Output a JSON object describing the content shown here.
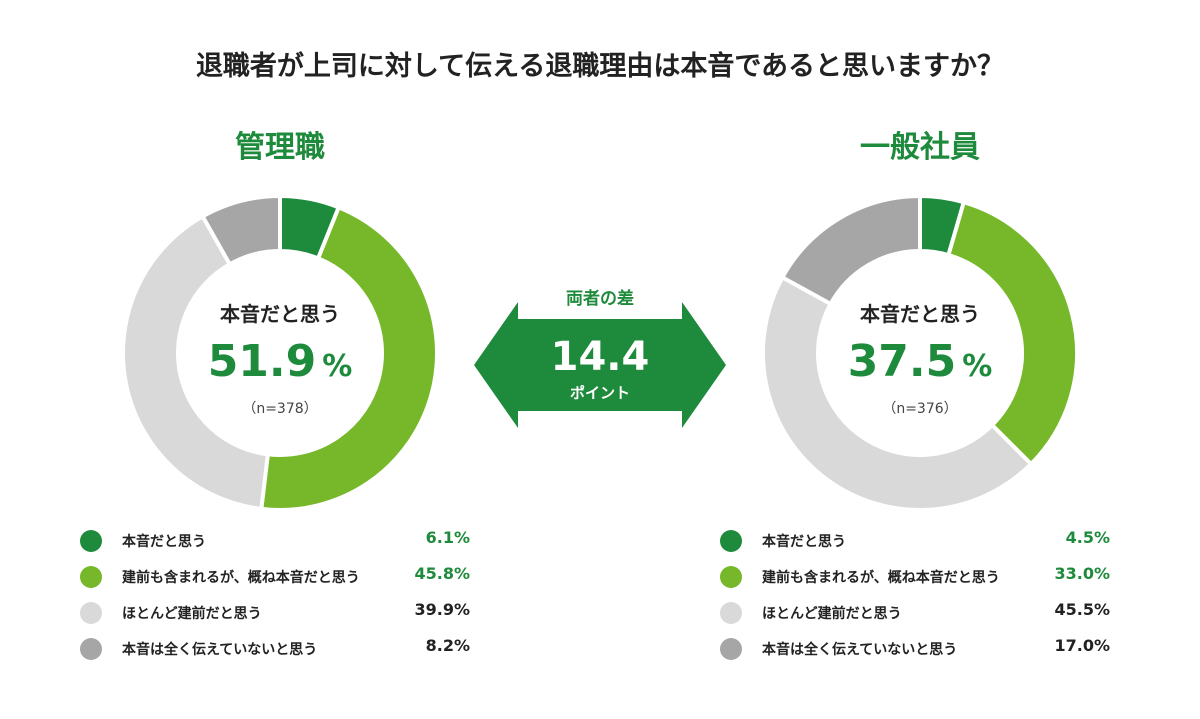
{
  "title": "退職者が上司に対して伝える退職理由は本音であると思いますか？",
  "center_label": "本音だと思う",
  "difference": {
    "label": "両者の差",
    "value": "14.4",
    "unit": "ポイント"
  },
  "colors": {
    "dark_green": "#1e8a3c",
    "light_green": "#76b82a",
    "light_gray": "#d9d9d9",
    "mid_gray": "#a6a6a6",
    "accent_text": "#1e8a3c"
  },
  "chart_data": [
    {
      "type": "pie",
      "title": "管理職",
      "center_value": "51.9",
      "center_unit": "%",
      "sample_size": "（n=378）",
      "categories": [
        "本音だと思う",
        "建前も含まれるが、概ね本音だと思う",
        "ほとんど建前だと思う",
        "本音は全く伝えていないと思う"
      ],
      "values": [
        6.1,
        45.8,
        39.9,
        8.2
      ],
      "value_labels": [
        "6.1%",
        "45.8%",
        "39.9%",
        "8.2%"
      ]
    },
    {
      "type": "pie",
      "title": "一般社員",
      "center_value": "37.5",
      "center_unit": "%",
      "sample_size": "（n=376）",
      "categories": [
        "本音だと思う",
        "建前も含まれるが、概ね本音だと思う",
        "ほとんど建前だと思う",
        "本音は全く伝えていないと思う"
      ],
      "values": [
        4.5,
        33.0,
        45.5,
        17.0
      ],
      "value_labels": [
        "4.5%",
        "33.0%",
        "45.5%",
        "17.0%"
      ]
    }
  ]
}
